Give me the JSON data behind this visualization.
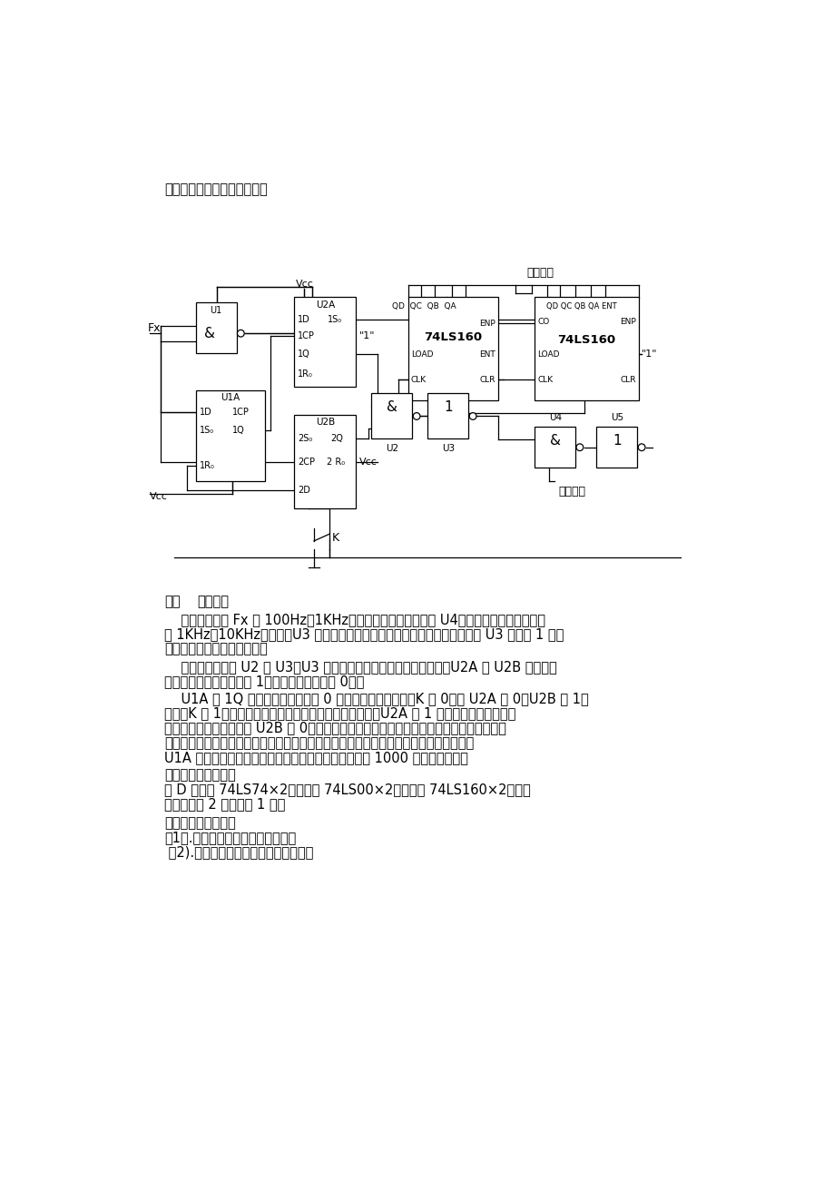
{
  "bg_color": "#ffffff",
  "text_color": "#000000",
  "page_top_text": "以下是实现的一种参考方案：",
  "sec6_head1": "六．",
  "sec6_head2": "电路原理",
  "sec6_p1_l1": "    其中被测信号 Fx 为 100Hz～1KHz信号源，我们的主控门为 U4，我们的标准信号源频率",
  "sec6_p1_l2": "为 1KHz～10KHz信号源，U3 输出为我们要测量的信号高电平持续时间。即当 U3 输出为 1 时，",
  "sec6_p1_l3": "我们对标准信号源进行记数。",
  "sec6_p2_l1": "    我们的控制门为 U2 和 U3，U3 输出被测量信号的一个高电平脉宽，U2A 和 U2B 分别为被",
  "sec6_p2_l2": "测信号源上升沿触发（置 1）和下降沿触发（置 0）。",
  "sec6_p3_l1": "    U1A 的 1Q 输出为预置信号，为 0 时有效，开始启动时，K 置 0，使 U2A 置 0，U2B 置 1。",
  "sec6_p3_l2": "然后，K 置 1，计数开始。这时如果被测信号上升沿到来，U2A 置 1 开始打开主控制门开始",
  "sec6_p3_l3": "计数，紧接着的下降沿使 U2B 置 0，从而关掉控制门，计数完毕。但是由于启动时要求上升",
  "sec6_p3_l4": "沿先到达以达到正确记数，所以要外加电路使电路在第一个下降沿之后开始工作，也就是",
  "sec6_p3_l5": "U1A 的作用，读者可以自行分析。接下来就只要扩展为 1000 进制计数器了。",
  "sec7_head": "七．所用的元器件：",
  "sec7_l1": "双 D 触发器 74LS74×2，与非门 74LS00×2，计数器 74LS160×2，七段",
  "sec7_l2": "共阴数码管 2 个，开关 1 个。",
  "sec8_head": "八．思考扩展模块：",
  "sec8_l1": "（1）.如何实现测量信号的占空比。",
  "sec8_l2": " （2).提高测量的精度，进行误差分析。",
  "lw": 0.9,
  "text_fs": 10.5,
  "small_fs": 7.5,
  "tiny_fs": 6.5
}
